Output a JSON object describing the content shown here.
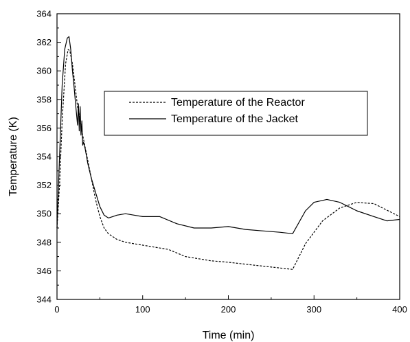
{
  "chart_data": {
    "type": "line",
    "xlabel": "Time (min)",
    "ylabel": "Temperature (K)",
    "xlim": [
      0,
      400
    ],
    "ylim": [
      344,
      364
    ],
    "xticks": [
      0,
      100,
      200,
      300,
      400
    ],
    "yticks": [
      344,
      346,
      348,
      350,
      352,
      354,
      356,
      358,
      360,
      362,
      364
    ],
    "grid": false,
    "legend_position": "center-right",
    "series": [
      {
        "name": "Temperature of the Reactor",
        "style": "dashed",
        "color": "#000000",
        "x": [
          0,
          3,
          6,
          10,
          13,
          15,
          18,
          21,
          24,
          27,
          30,
          35,
          40,
          45,
          50,
          55,
          60,
          70,
          80,
          100,
          130,
          150,
          180,
          200,
          230,
          260,
          275,
          290,
          310,
          330,
          350,
          370,
          390,
          400
        ],
        "y": [
          349.0,
          352.0,
          356.5,
          360.5,
          361.5,
          361.4,
          360.5,
          359.0,
          357.5,
          356.5,
          355.5,
          354.0,
          352.5,
          351.0,
          349.8,
          349.0,
          348.6,
          348.2,
          348.0,
          347.8,
          347.5,
          347.0,
          346.7,
          346.6,
          346.4,
          346.2,
          346.1,
          347.9,
          349.5,
          350.4,
          350.8,
          350.7,
          350.1,
          349.8
        ]
      },
      {
        "name": "Temperature of the Jacket",
        "style": "solid",
        "color": "#000000",
        "x": [
          0,
          3,
          6,
          9,
          12,
          14,
          16,
          18,
          20,
          22,
          24,
          25,
          26,
          27,
          28,
          29,
          30,
          31,
          33,
          36,
          40,
          45,
          50,
          55,
          60,
          65,
          70,
          80,
          90,
          100,
          120,
          140,
          160,
          180,
          200,
          220,
          240,
          260,
          275,
          290,
          300,
          315,
          330,
          350,
          370,
          385,
          400
        ],
        "y": [
          349.0,
          354.0,
          359.0,
          361.5,
          362.3,
          362.4,
          361.5,
          360.0,
          358.8,
          357.5,
          356.2,
          357.7,
          355.8,
          357.5,
          355.5,
          356.5,
          354.8,
          355.0,
          354.5,
          353.5,
          352.5,
          351.5,
          350.5,
          349.9,
          349.7,
          349.8,
          349.9,
          350.0,
          349.9,
          349.8,
          349.8,
          349.3,
          349.0,
          349.0,
          349.1,
          348.9,
          348.8,
          348.7,
          348.6,
          350.2,
          350.8,
          351.0,
          350.8,
          350.2,
          349.8,
          349.5,
          349.6
        ]
      }
    ]
  }
}
